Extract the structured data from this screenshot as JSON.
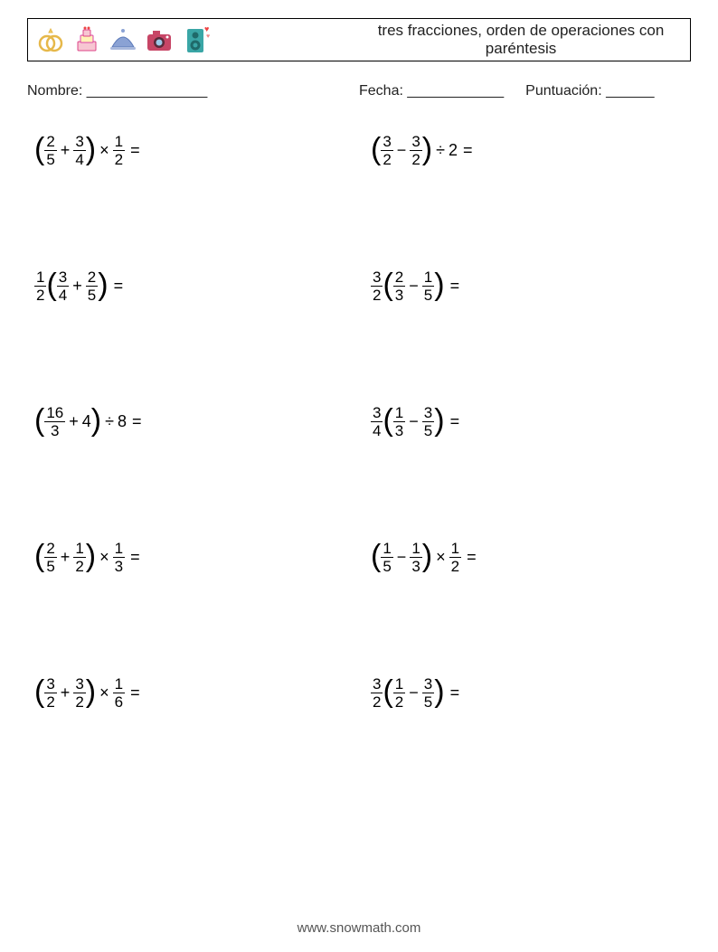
{
  "header": {
    "title": "tres fracciones, orden de operaciones con paréntesis"
  },
  "meta": {
    "name_label": "Nombre: _______________",
    "date_label": "Fecha: ____________",
    "score_label": "Puntuación: ______"
  },
  "icons": [
    {
      "name": "rings-icon"
    },
    {
      "name": "cake-icon"
    },
    {
      "name": "cloche-icon"
    },
    {
      "name": "camera-icon"
    },
    {
      "name": "speaker-icon"
    }
  ],
  "problems": [
    {
      "col": "left",
      "parts": [
        {
          "t": "lparen"
        },
        {
          "t": "frac",
          "n": "2",
          "d": "5"
        },
        {
          "t": "op",
          "v": "+"
        },
        {
          "t": "frac",
          "n": "3",
          "d": "4"
        },
        {
          "t": "rparen"
        },
        {
          "t": "op",
          "v": "×"
        },
        {
          "t": "frac",
          "n": "1",
          "d": "2"
        },
        {
          "t": "eq"
        }
      ]
    },
    {
      "col": "right",
      "parts": [
        {
          "t": "lparen"
        },
        {
          "t": "frac",
          "n": "3",
          "d": "2"
        },
        {
          "t": "op",
          "v": "−"
        },
        {
          "t": "frac",
          "n": "3",
          "d": "2"
        },
        {
          "t": "rparen"
        },
        {
          "t": "op",
          "v": "÷"
        },
        {
          "t": "whole",
          "v": "2"
        },
        {
          "t": "eq"
        }
      ]
    },
    {
      "col": "left",
      "parts": [
        {
          "t": "frac",
          "n": "1",
          "d": "2"
        },
        {
          "t": "lparen"
        },
        {
          "t": "frac",
          "n": "3",
          "d": "4"
        },
        {
          "t": "op",
          "v": "+"
        },
        {
          "t": "frac",
          "n": "2",
          "d": "5"
        },
        {
          "t": "rparen"
        },
        {
          "t": "eq"
        }
      ]
    },
    {
      "col": "right",
      "parts": [
        {
          "t": "frac",
          "n": "3",
          "d": "2"
        },
        {
          "t": "lparen"
        },
        {
          "t": "frac",
          "n": "2",
          "d": "3"
        },
        {
          "t": "op",
          "v": "−"
        },
        {
          "t": "frac",
          "n": "1",
          "d": "5"
        },
        {
          "t": "rparen"
        },
        {
          "t": "eq"
        }
      ]
    },
    {
      "col": "left",
      "parts": [
        {
          "t": "lparen"
        },
        {
          "t": "frac",
          "n": "16",
          "d": "3"
        },
        {
          "t": "op",
          "v": "+"
        },
        {
          "t": "whole",
          "v": "4"
        },
        {
          "t": "rparen"
        },
        {
          "t": "op",
          "v": "÷"
        },
        {
          "t": "whole",
          "v": "8"
        },
        {
          "t": "eq"
        }
      ]
    },
    {
      "col": "right",
      "parts": [
        {
          "t": "frac",
          "n": "3",
          "d": "4"
        },
        {
          "t": "lparen"
        },
        {
          "t": "frac",
          "n": "1",
          "d": "3"
        },
        {
          "t": "op",
          "v": "−"
        },
        {
          "t": "frac",
          "n": "3",
          "d": "5"
        },
        {
          "t": "rparen"
        },
        {
          "t": "eq"
        }
      ]
    },
    {
      "col": "left",
      "parts": [
        {
          "t": "lparen"
        },
        {
          "t": "frac",
          "n": "2",
          "d": "5"
        },
        {
          "t": "op",
          "v": "+"
        },
        {
          "t": "frac",
          "n": "1",
          "d": "2"
        },
        {
          "t": "rparen"
        },
        {
          "t": "op",
          "v": "×"
        },
        {
          "t": "frac",
          "n": "1",
          "d": "3"
        },
        {
          "t": "eq"
        }
      ]
    },
    {
      "col": "right",
      "parts": [
        {
          "t": "lparen"
        },
        {
          "t": "frac",
          "n": "1",
          "d": "5"
        },
        {
          "t": "op",
          "v": "−"
        },
        {
          "t": "frac",
          "n": "1",
          "d": "3"
        },
        {
          "t": "rparen"
        },
        {
          "t": "op",
          "v": "×"
        },
        {
          "t": "frac",
          "n": "1",
          "d": "2"
        },
        {
          "t": "eq"
        }
      ]
    },
    {
      "col": "left",
      "parts": [
        {
          "t": "lparen"
        },
        {
          "t": "frac",
          "n": "3",
          "d": "2"
        },
        {
          "t": "op",
          "v": "+"
        },
        {
          "t": "frac",
          "n": "3",
          "d": "2"
        },
        {
          "t": "rparen"
        },
        {
          "t": "op",
          "v": "×"
        },
        {
          "t": "frac",
          "n": "1",
          "d": "6"
        },
        {
          "t": "eq"
        }
      ]
    },
    {
      "col": "right",
      "parts": [
        {
          "t": "frac",
          "n": "3",
          "d": "2"
        },
        {
          "t": "lparen"
        },
        {
          "t": "frac",
          "n": "1",
          "d": "2"
        },
        {
          "t": "op",
          "v": "−"
        },
        {
          "t": "frac",
          "n": "3",
          "d": "5"
        },
        {
          "t": "rparen"
        },
        {
          "t": "eq"
        }
      ]
    }
  ],
  "footer": {
    "text": "www.snowmath.com"
  },
  "colors": {
    "text": "#000000",
    "border": "#000000",
    "footer_text": "#555555",
    "background": "#ffffff"
  }
}
